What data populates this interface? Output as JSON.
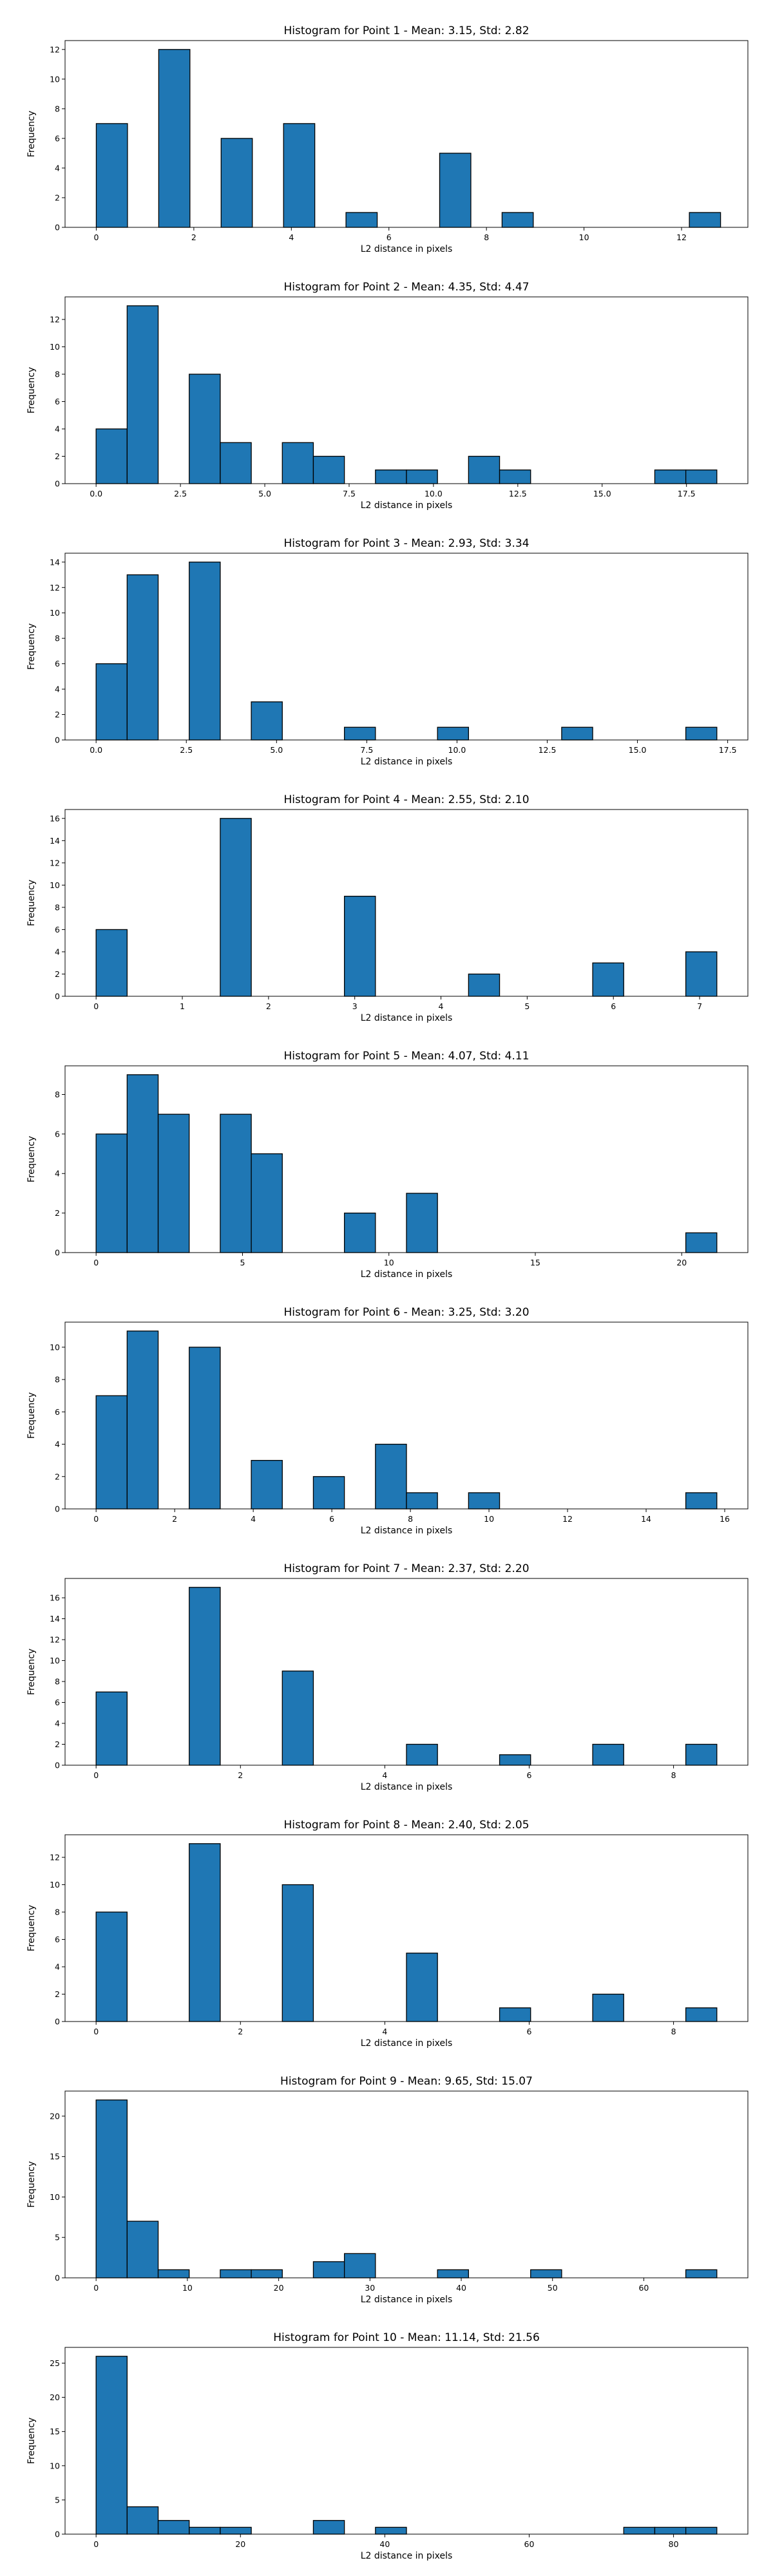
{
  "colors": {
    "bar_fill": "#1f77b4",
    "bar_edge": "#000000",
    "axes": "#000000",
    "background": "#ffffff"
  },
  "chart_data": [
    {
      "type": "bar",
      "title": "Histogram for Point 1 - Mean: 3.15, Std: 2.82",
      "xlabel": "L2 distance in pixels",
      "ylabel": "Frequency",
      "xlim": [
        -0.64,
        13.36
      ],
      "ylim": [
        0,
        12.6
      ],
      "xticks": [
        0,
        2,
        4,
        6,
        8,
        10,
        12
      ],
      "yticks": [
        0,
        2,
        4,
        6,
        8,
        10,
        12
      ],
      "bin_edges": [
        0,
        0.64,
        1.28,
        1.92,
        2.56,
        3.2,
        3.84,
        4.48,
        5.12,
        5.76,
        6.4,
        7.04,
        7.68,
        8.32,
        8.96,
        9.6,
        10.24,
        10.88,
        11.52,
        12.16,
        12.8
      ],
      "counts": [
        7,
        0,
        12,
        0,
        6,
        0,
        7,
        0,
        1,
        0,
        0,
        5,
        0,
        1,
        0,
        0,
        0,
        0,
        0,
        1
      ],
      "grid": false
    },
    {
      "type": "bar",
      "title": "Histogram for Point 2 - Mean: 4.35, Std: 4.47",
      "xlabel": "L2 distance in pixels",
      "ylabel": "Frequency",
      "xlim": [
        -0.92,
        19.32
      ],
      "ylim": [
        0,
        13.65
      ],
      "xticks": [
        0.0,
        2.5,
        5.0,
        7.5,
        10.0,
        12.5,
        15.0,
        17.5
      ],
      "xtick_labels": [
        "0.0",
        "2.5",
        "5.0",
        "7.5",
        "10.0",
        "12.5",
        "15.0",
        "17.5"
      ],
      "yticks": [
        0,
        2,
        4,
        6,
        8,
        10,
        12
      ],
      "bin_edges": [
        0,
        0.92,
        1.84,
        2.76,
        3.68,
        4.6,
        5.52,
        6.44,
        7.36,
        8.28,
        9.2,
        10.12,
        11.04,
        11.96,
        12.88,
        13.8,
        14.72,
        15.64,
        16.56,
        17.48,
        18.4
      ],
      "counts": [
        4,
        13,
        0,
        8,
        3,
        0,
        3,
        2,
        0,
        1,
        1,
        0,
        2,
        1,
        0,
        0,
        0,
        0,
        1,
        1
      ],
      "grid": false
    },
    {
      "type": "bar",
      "title": "Histogram for Point 3 - Mean: 2.93, Std: 3.34",
      "xlabel": "L2 distance in pixels",
      "ylabel": "Frequency",
      "xlim": [
        -0.86,
        18.06
      ],
      "ylim": [
        0,
        14.7
      ],
      "xticks": [
        0.0,
        2.5,
        5.0,
        7.5,
        10.0,
        12.5,
        15.0,
        17.5
      ],
      "xtick_labels": [
        "0.0",
        "2.5",
        "5.0",
        "7.5",
        "10.0",
        "12.5",
        "15.0",
        "17.5"
      ],
      "yticks": [
        0,
        2,
        4,
        6,
        8,
        10,
        12,
        14
      ],
      "bin_edges": [
        0,
        0.86,
        1.72,
        2.58,
        3.44,
        4.3,
        5.16,
        6.02,
        6.88,
        7.74,
        8.6,
        9.46,
        10.32,
        11.18,
        12.04,
        12.9,
        13.76,
        14.62,
        15.48,
        16.34,
        17.2
      ],
      "counts": [
        6,
        13,
        0,
        14,
        0,
        3,
        0,
        0,
        1,
        0,
        0,
        1,
        0,
        0,
        0,
        1,
        0,
        0,
        0,
        1
      ],
      "grid": false
    },
    {
      "type": "bar",
      "title": "Histogram for Point 4 - Mean: 2.55, Std: 2.10",
      "xlabel": "L2 distance in pixels",
      "ylabel": "Frequency",
      "xlim": [
        -0.36,
        7.56
      ],
      "ylim": [
        0,
        16.8
      ],
      "xticks": [
        0,
        1,
        2,
        3,
        4,
        5,
        6,
        7
      ],
      "yticks": [
        0,
        2,
        4,
        6,
        8,
        10,
        12,
        14,
        16
      ],
      "bin_edges": [
        0,
        0.36,
        0.72,
        1.08,
        1.44,
        1.8,
        2.16,
        2.52,
        2.88,
        3.24,
        3.6,
        3.96,
        4.32,
        4.68,
        5.04,
        5.4,
        5.76,
        6.12,
        6.48,
        6.84,
        7.2
      ],
      "counts": [
        6,
        0,
        0,
        0,
        16,
        0,
        0,
        0,
        9,
        0,
        0,
        0,
        2,
        0,
        0,
        0,
        3,
        0,
        0,
        4
      ],
      "grid": false
    },
    {
      "type": "bar",
      "title": "Histogram for Point 5 - Mean: 4.07, Std: 4.11",
      "xlabel": "L2 distance in pixels",
      "ylabel": "Frequency",
      "xlim": [
        -1.06,
        22.26
      ],
      "ylim": [
        0,
        9.45
      ],
      "xticks": [
        0,
        5,
        10,
        15,
        20
      ],
      "yticks": [
        0,
        2,
        4,
        6,
        8
      ],
      "bin_edges": [
        0,
        1.06,
        2.12,
        3.18,
        4.24,
        5.3,
        6.36,
        7.42,
        8.48,
        9.54,
        10.6,
        11.66,
        12.72,
        13.78,
        14.84,
        15.9,
        16.96,
        18.02,
        19.08,
        20.14,
        21.2
      ],
      "counts": [
        6,
        9,
        7,
        0,
        7,
        5,
        0,
        0,
        2,
        0,
        3,
        0,
        0,
        0,
        0,
        0,
        0,
        0,
        0,
        1
      ],
      "grid": false
    },
    {
      "type": "bar",
      "title": "Histogram for Point 6 - Mean: 3.25, Std: 3.20",
      "xlabel": "L2 distance in pixels",
      "ylabel": "Frequency",
      "xlim": [
        -0.79,
        16.59
      ],
      "ylim": [
        0,
        11.55
      ],
      "xticks": [
        0,
        2,
        4,
        6,
        8,
        10,
        12,
        14,
        16
      ],
      "yticks": [
        0,
        2,
        4,
        6,
        8,
        10
      ],
      "bin_edges": [
        0,
        0.79,
        1.58,
        2.37,
        3.16,
        3.95,
        4.74,
        5.53,
        6.32,
        7.11,
        7.9,
        8.69,
        9.48,
        10.27,
        11.06,
        11.85,
        12.64,
        13.43,
        14.22,
        15.01,
        15.8
      ],
      "counts": [
        7,
        11,
        0,
        10,
        0,
        3,
        0,
        2,
        0,
        4,
        1,
        0,
        1,
        0,
        0,
        0,
        0,
        0,
        0,
        1
      ],
      "grid": false
    },
    {
      "type": "bar",
      "title": "Histogram for Point 7 - Mean: 2.37, Std: 2.20",
      "xlabel": "L2 distance in pixels",
      "ylabel": "Frequency",
      "xlim": [
        -0.43,
        9.03
      ],
      "ylim": [
        0,
        17.85
      ],
      "xticks": [
        0,
        2,
        4,
        6,
        8
      ],
      "yticks": [
        0,
        2,
        4,
        6,
        8,
        10,
        12,
        14,
        16
      ],
      "bin_edges": [
        0,
        0.43,
        0.86,
        1.29,
        1.72,
        2.15,
        2.58,
        3.01,
        3.44,
        3.87,
        4.3,
        4.73,
        5.16,
        5.59,
        6.02,
        6.45,
        6.88,
        7.31,
        7.74,
        8.17,
        8.6
      ],
      "counts": [
        7,
        0,
        0,
        17,
        0,
        0,
        9,
        0,
        0,
        0,
        2,
        0,
        0,
        1,
        0,
        0,
        2,
        0,
        0,
        2
      ],
      "grid": false
    },
    {
      "type": "bar",
      "title": "Histogram for Point 8 - Mean: 2.40, Std: 2.05",
      "xlabel": "L2 distance in pixels",
      "ylabel": "Frequency",
      "xlim": [
        -0.43,
        9.03
      ],
      "ylim": [
        0,
        13.65
      ],
      "xticks": [
        0,
        2,
        4,
        6,
        8
      ],
      "yticks": [
        0,
        2,
        4,
        6,
        8,
        10,
        12
      ],
      "bin_edges": [
        0,
        0.43,
        0.86,
        1.29,
        1.72,
        2.15,
        2.58,
        3.01,
        3.44,
        3.87,
        4.3,
        4.73,
        5.16,
        5.59,
        6.02,
        6.45,
        6.88,
        7.31,
        7.74,
        8.17,
        8.6
      ],
      "counts": [
        8,
        0,
        0,
        13,
        0,
        0,
        10,
        0,
        0,
        0,
        5,
        0,
        0,
        1,
        0,
        0,
        2,
        0,
        0,
        1
      ],
      "grid": false
    },
    {
      "type": "bar",
      "title": "Histogram for Point 9 - Mean: 9.65, Std: 15.07",
      "xlabel": "L2 distance in pixels",
      "ylabel": "Frequency",
      "xlim": [
        -3.4,
        71.4
      ],
      "ylim": [
        0,
        23.1
      ],
      "xticks": [
        0,
        10,
        20,
        30,
        40,
        50,
        60
      ],
      "yticks": [
        0,
        5,
        10,
        15,
        20
      ],
      "bin_edges": [
        0,
        3.4,
        6.8,
        10.2,
        13.6,
        17,
        20.4,
        23.8,
        27.2,
        30.6,
        34,
        37.4,
        40.8,
        44.2,
        47.6,
        51,
        54.4,
        57.8,
        61.2,
        64.6,
        68
      ],
      "counts": [
        22,
        7,
        1,
        0,
        1,
        1,
        0,
        2,
        3,
        0,
        0,
        1,
        0,
        0,
        1,
        0,
        0,
        0,
        0,
        1
      ],
      "grid": false
    },
    {
      "type": "bar",
      "title": "Histogram for Point 10 - Mean: 11.14, Std: 21.56",
      "xlabel": "L2 distance in pixels",
      "ylabel": "Frequency",
      "xlim": [
        -4.3,
        90.3
      ],
      "ylim": [
        0,
        27.3
      ],
      "xticks": [
        0,
        20,
        40,
        60,
        80
      ],
      "yticks": [
        0,
        5,
        10,
        15,
        20,
        25
      ],
      "bin_edges": [
        0,
        4.3,
        8.6,
        12.9,
        17.2,
        21.5,
        25.8,
        30.1,
        34.4,
        38.7,
        43,
        47.3,
        51.6,
        55.9,
        60.2,
        64.5,
        68.8,
        73.1,
        77.4,
        81.7,
        86
      ],
      "counts": [
        26,
        4,
        2,
        1,
        1,
        0,
        0,
        2,
        0,
        1,
        0,
        0,
        0,
        0,
        0,
        0,
        0,
        1,
        1,
        1
      ],
      "grid": false
    }
  ]
}
